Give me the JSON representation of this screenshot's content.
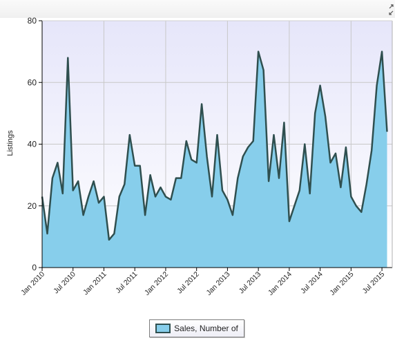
{
  "colors": {
    "area_fill": "#87ceeb",
    "line": "#2f4f4f",
    "plot_bg_top": "#e6e6fa",
    "plot_bg_bottom": "#ffffff",
    "grid": "#c8c8c8"
  },
  "icons": {
    "corner": "expand-arrows-icon"
  },
  "chart_data": {
    "type": "area",
    "title": "",
    "xlabel": "",
    "ylabel": "Listings",
    "ylim": [
      0,
      80
    ],
    "yticks": [
      0,
      20,
      40,
      60,
      80
    ],
    "xlim": [
      "2010-01",
      "2015-09"
    ],
    "xticks": [
      {
        "label": "Jan 2010",
        "month": "2010-01"
      },
      {
        "label": "Jul 2010",
        "month": "2010-07"
      },
      {
        "label": "Jan 2011",
        "month": "2011-01"
      },
      {
        "label": "Jul 2011",
        "month": "2011-07"
      },
      {
        "label": "Jan 2012",
        "month": "2012-01"
      },
      {
        "label": "Jul 2012",
        "month": "2012-07"
      },
      {
        "label": "Jan 2013",
        "month": "2013-01"
      },
      {
        "label": "Jul 2013",
        "month": "2013-07"
      },
      {
        "label": "Jan 2014",
        "month": "2014-01"
      },
      {
        "label": "Jul 2014",
        "month": "2014-07"
      },
      {
        "label": "Jan 2015",
        "month": "2015-01"
      },
      {
        "label": "Jul 2015",
        "month": "2015-07"
      }
    ],
    "grid": true,
    "legend": "bottom-center",
    "series": [
      {
        "name": "Sales, Number of",
        "x": [
          "2010-01",
          "2010-02",
          "2010-03",
          "2010-04",
          "2010-05",
          "2010-06",
          "2010-07",
          "2010-08",
          "2010-09",
          "2010-10",
          "2010-11",
          "2010-12",
          "2011-01",
          "2011-02",
          "2011-03",
          "2011-04",
          "2011-05",
          "2011-06",
          "2011-07",
          "2011-08",
          "2011-09",
          "2011-10",
          "2011-11",
          "2011-12",
          "2012-01",
          "2012-02",
          "2012-03",
          "2012-04",
          "2012-05",
          "2012-06",
          "2012-07",
          "2012-08",
          "2012-09",
          "2012-10",
          "2012-11",
          "2012-12",
          "2013-01",
          "2013-02",
          "2013-03",
          "2013-04",
          "2013-05",
          "2013-06",
          "2013-07",
          "2013-08",
          "2013-09",
          "2013-10",
          "2013-11",
          "2013-12",
          "2014-01",
          "2014-02",
          "2014-03",
          "2014-04",
          "2014-05",
          "2014-06",
          "2014-07",
          "2014-08",
          "2014-09",
          "2014-10",
          "2014-11",
          "2014-12",
          "2015-01",
          "2015-02",
          "2015-03",
          "2015-04",
          "2015-05",
          "2015-06",
          "2015-07",
          "2015-08"
        ],
        "values": [
          23,
          11,
          29,
          34,
          24,
          68,
          25,
          28,
          17,
          23,
          28,
          21,
          23,
          9,
          11,
          23,
          27,
          43,
          33,
          33,
          17,
          30,
          23,
          26,
          23,
          22,
          29,
          29,
          41,
          35,
          34,
          53,
          36,
          23,
          43,
          25,
          22,
          17,
          29,
          36,
          39,
          41,
          70,
          64,
          28,
          43,
          29,
          47,
          15,
          20,
          25,
          40,
          24,
          50,
          59,
          49,
          34,
          37,
          26,
          39,
          23,
          20,
          18,
          27,
          38,
          59,
          70,
          44
        ]
      }
    ]
  }
}
